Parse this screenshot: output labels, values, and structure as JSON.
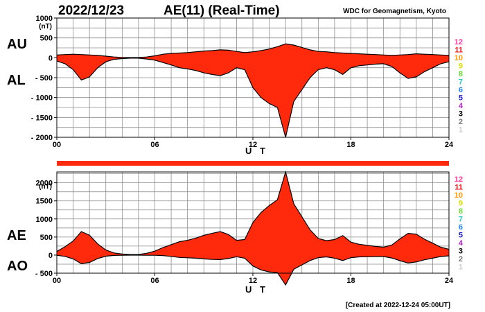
{
  "header": {
    "date": "2022/12/23",
    "title": "AE(11) (Real-Time)",
    "organization": "WDC for Geomagnetism, Kyoto"
  },
  "footer": {
    "created": "[Created at 2022-12-24 05:00UT]"
  },
  "colors": {
    "fill": "#ff2a0c",
    "outline": "#000000",
    "grid": "#8c8c8c",
    "coverage_bar": "#ff2a0c"
  },
  "station_legend": [
    {
      "label": "12",
      "color": "#ff3399"
    },
    {
      "label": "11",
      "color": "#ee1111"
    },
    {
      "label": "10",
      "color": "#ff9900"
    },
    {
      "label": "9",
      "color": "#dddd00"
    },
    {
      "label": "8",
      "color": "#66dd33"
    },
    {
      "label": "7",
      "color": "#22cccc"
    },
    {
      "label": "6",
      "color": "#2288ee"
    },
    {
      "label": "5",
      "color": "#2222cc"
    },
    {
      "label": "4",
      "color": "#bb22cc"
    },
    {
      "label": "3",
      "color": "#000000"
    },
    {
      "label": "2",
      "color": "#777777"
    },
    {
      "label": "1",
      "color": "#cccccc"
    }
  ],
  "chart_data": [
    {
      "type": "area",
      "panel": "AU-AL",
      "upper_label": "AU",
      "lower_label": "AL",
      "unit": "(nT)",
      "xlabel": "U T",
      "xlim": [
        0,
        24
      ],
      "ylim": [
        -2000,
        1000
      ],
      "x_ticks": [
        "00",
        "06",
        "12",
        "18",
        "24"
      ],
      "y_ticks": [
        "1000",
        "500",
        "0",
        "- 500",
        "- 1000",
        "- 1500",
        "- 2000"
      ],
      "y_tick_values": [
        1000,
        500,
        0,
        -500,
        -1000,
        -1500,
        -2000
      ],
      "grid": true,
      "series": [
        {
          "name": "AU",
          "x": [
            0,
            0.5,
            1,
            1.5,
            2,
            2.5,
            3,
            3.5,
            4,
            4.5,
            5,
            5.5,
            6,
            6.5,
            7,
            7.5,
            8,
            8.5,
            9,
            9.5,
            10,
            10.5,
            11,
            11.5,
            12,
            12.5,
            13,
            13.5,
            14,
            14.5,
            15,
            15.5,
            16,
            16.5,
            17,
            17.5,
            18,
            18.5,
            19,
            19.5,
            20,
            20.5,
            21,
            21.5,
            22,
            22.5,
            23,
            23.5,
            24
          ],
          "values": [
            70,
            80,
            90,
            80,
            70,
            60,
            40,
            20,
            10,
            5,
            5,
            20,
            50,
            90,
            110,
            120,
            130,
            150,
            170,
            180,
            200,
            190,
            160,
            130,
            150,
            180,
            220,
            280,
            350,
            320,
            260,
            200,
            160,
            150,
            130,
            120,
            110,
            100,
            90,
            80,
            70,
            60,
            70,
            80,
            100,
            90,
            80,
            70,
            60
          ]
        },
        {
          "name": "AL",
          "x": [
            0,
            0.5,
            1,
            1.5,
            2,
            2.5,
            3,
            3.5,
            4,
            4.5,
            5,
            5.5,
            6,
            6.5,
            7,
            7.5,
            8,
            8.5,
            9,
            9.5,
            10,
            10.5,
            11,
            11.5,
            12,
            12.5,
            13,
            13.5,
            14,
            14.5,
            15,
            15.5,
            16,
            16.5,
            17,
            17.5,
            18,
            18.5,
            19,
            19.5,
            20,
            20.5,
            21,
            21.5,
            22,
            22.5,
            23,
            23.5,
            24
          ],
          "values": [
            -80,
            -150,
            -300,
            -560,
            -480,
            -250,
            -100,
            -40,
            -20,
            -10,
            -10,
            -30,
            -60,
            -120,
            -180,
            -250,
            -280,
            -320,
            -380,
            -420,
            -450,
            -380,
            -250,
            -300,
            -750,
            -1000,
            -1150,
            -1250,
            -2000,
            -1100,
            -800,
            -500,
            -300,
            -250,
            -300,
            -420,
            -250,
            -200,
            -180,
            -160,
            -150,
            -220,
            -380,
            -520,
            -480,
            -350,
            -250,
            -150,
            -100
          ]
        }
      ]
    },
    {
      "type": "area",
      "panel": "AE-AO",
      "upper_label": "AE",
      "lower_label": "AO",
      "unit": "(nT)",
      "xlabel": "U T",
      "xlim": [
        0,
        24
      ],
      "ylim": [
        -500,
        2300
      ],
      "x_ticks": [
        "00",
        "06",
        "12",
        "18",
        "24"
      ],
      "y_ticks": [
        "2000",
        "1500",
        "1000",
        "500",
        "0",
        "- 500"
      ],
      "y_tick_values": [
        2000,
        1500,
        1000,
        500,
        0,
        -500
      ],
      "grid": true,
      "series": [
        {
          "name": "AE",
          "x": [
            0,
            0.5,
            1,
            1.5,
            2,
            2.5,
            3,
            3.5,
            4,
            4.5,
            5,
            5.5,
            6,
            6.5,
            7,
            7.5,
            8,
            8.5,
            9,
            9.5,
            10,
            10.5,
            11,
            11.5,
            12,
            12.5,
            13,
            13.5,
            14,
            14.5,
            15,
            15.5,
            16,
            16.5,
            17,
            17.5,
            18,
            18.5,
            19,
            19.5,
            20,
            20.5,
            21,
            21.5,
            22,
            22.5,
            23,
            23.5,
            24
          ],
          "values": [
            100,
            230,
            390,
            650,
            550,
            310,
            140,
            60,
            30,
            15,
            15,
            50,
            110,
            210,
            290,
            370,
            410,
            470,
            550,
            600,
            650,
            570,
            410,
            430,
            900,
            1180,
            1370,
            1530,
            2300,
            1420,
            1060,
            700,
            460,
            400,
            430,
            540,
            360,
            300,
            270,
            240,
            220,
            280,
            450,
            600,
            580,
            440,
            330,
            220,
            160
          ]
        },
        {
          "name": "AO",
          "x": [
            0,
            0.5,
            1,
            1.5,
            2,
            2.5,
            3,
            3.5,
            4,
            4.5,
            5,
            5.5,
            6,
            6.5,
            7,
            7.5,
            8,
            8.5,
            9,
            9.5,
            10,
            10.5,
            11,
            11.5,
            12,
            12.5,
            13,
            13.5,
            14,
            14.5,
            15,
            15.5,
            16,
            16.5,
            17,
            17.5,
            18,
            18.5,
            19,
            19.5,
            20,
            20.5,
            21,
            21.5,
            22,
            22.5,
            23,
            23.5,
            24
          ],
          "values": [
            -5,
            -35,
            -105,
            -240,
            -205,
            -95,
            -30,
            -10,
            -5,
            -2,
            -2,
            -5,
            -5,
            -15,
            -35,
            -65,
            -75,
            -85,
            -105,
            -120,
            -125,
            -95,
            -45,
            -85,
            -300,
            -410,
            -465,
            -485,
            -825,
            -390,
            -270,
            -150,
            -70,
            -50,
            -85,
            -150,
            -70,
            -50,
            -45,
            -40,
            -40,
            -80,
            -155,
            -220,
            -190,
            -130,
            -85,
            -40,
            -20
          ]
        }
      ]
    }
  ]
}
